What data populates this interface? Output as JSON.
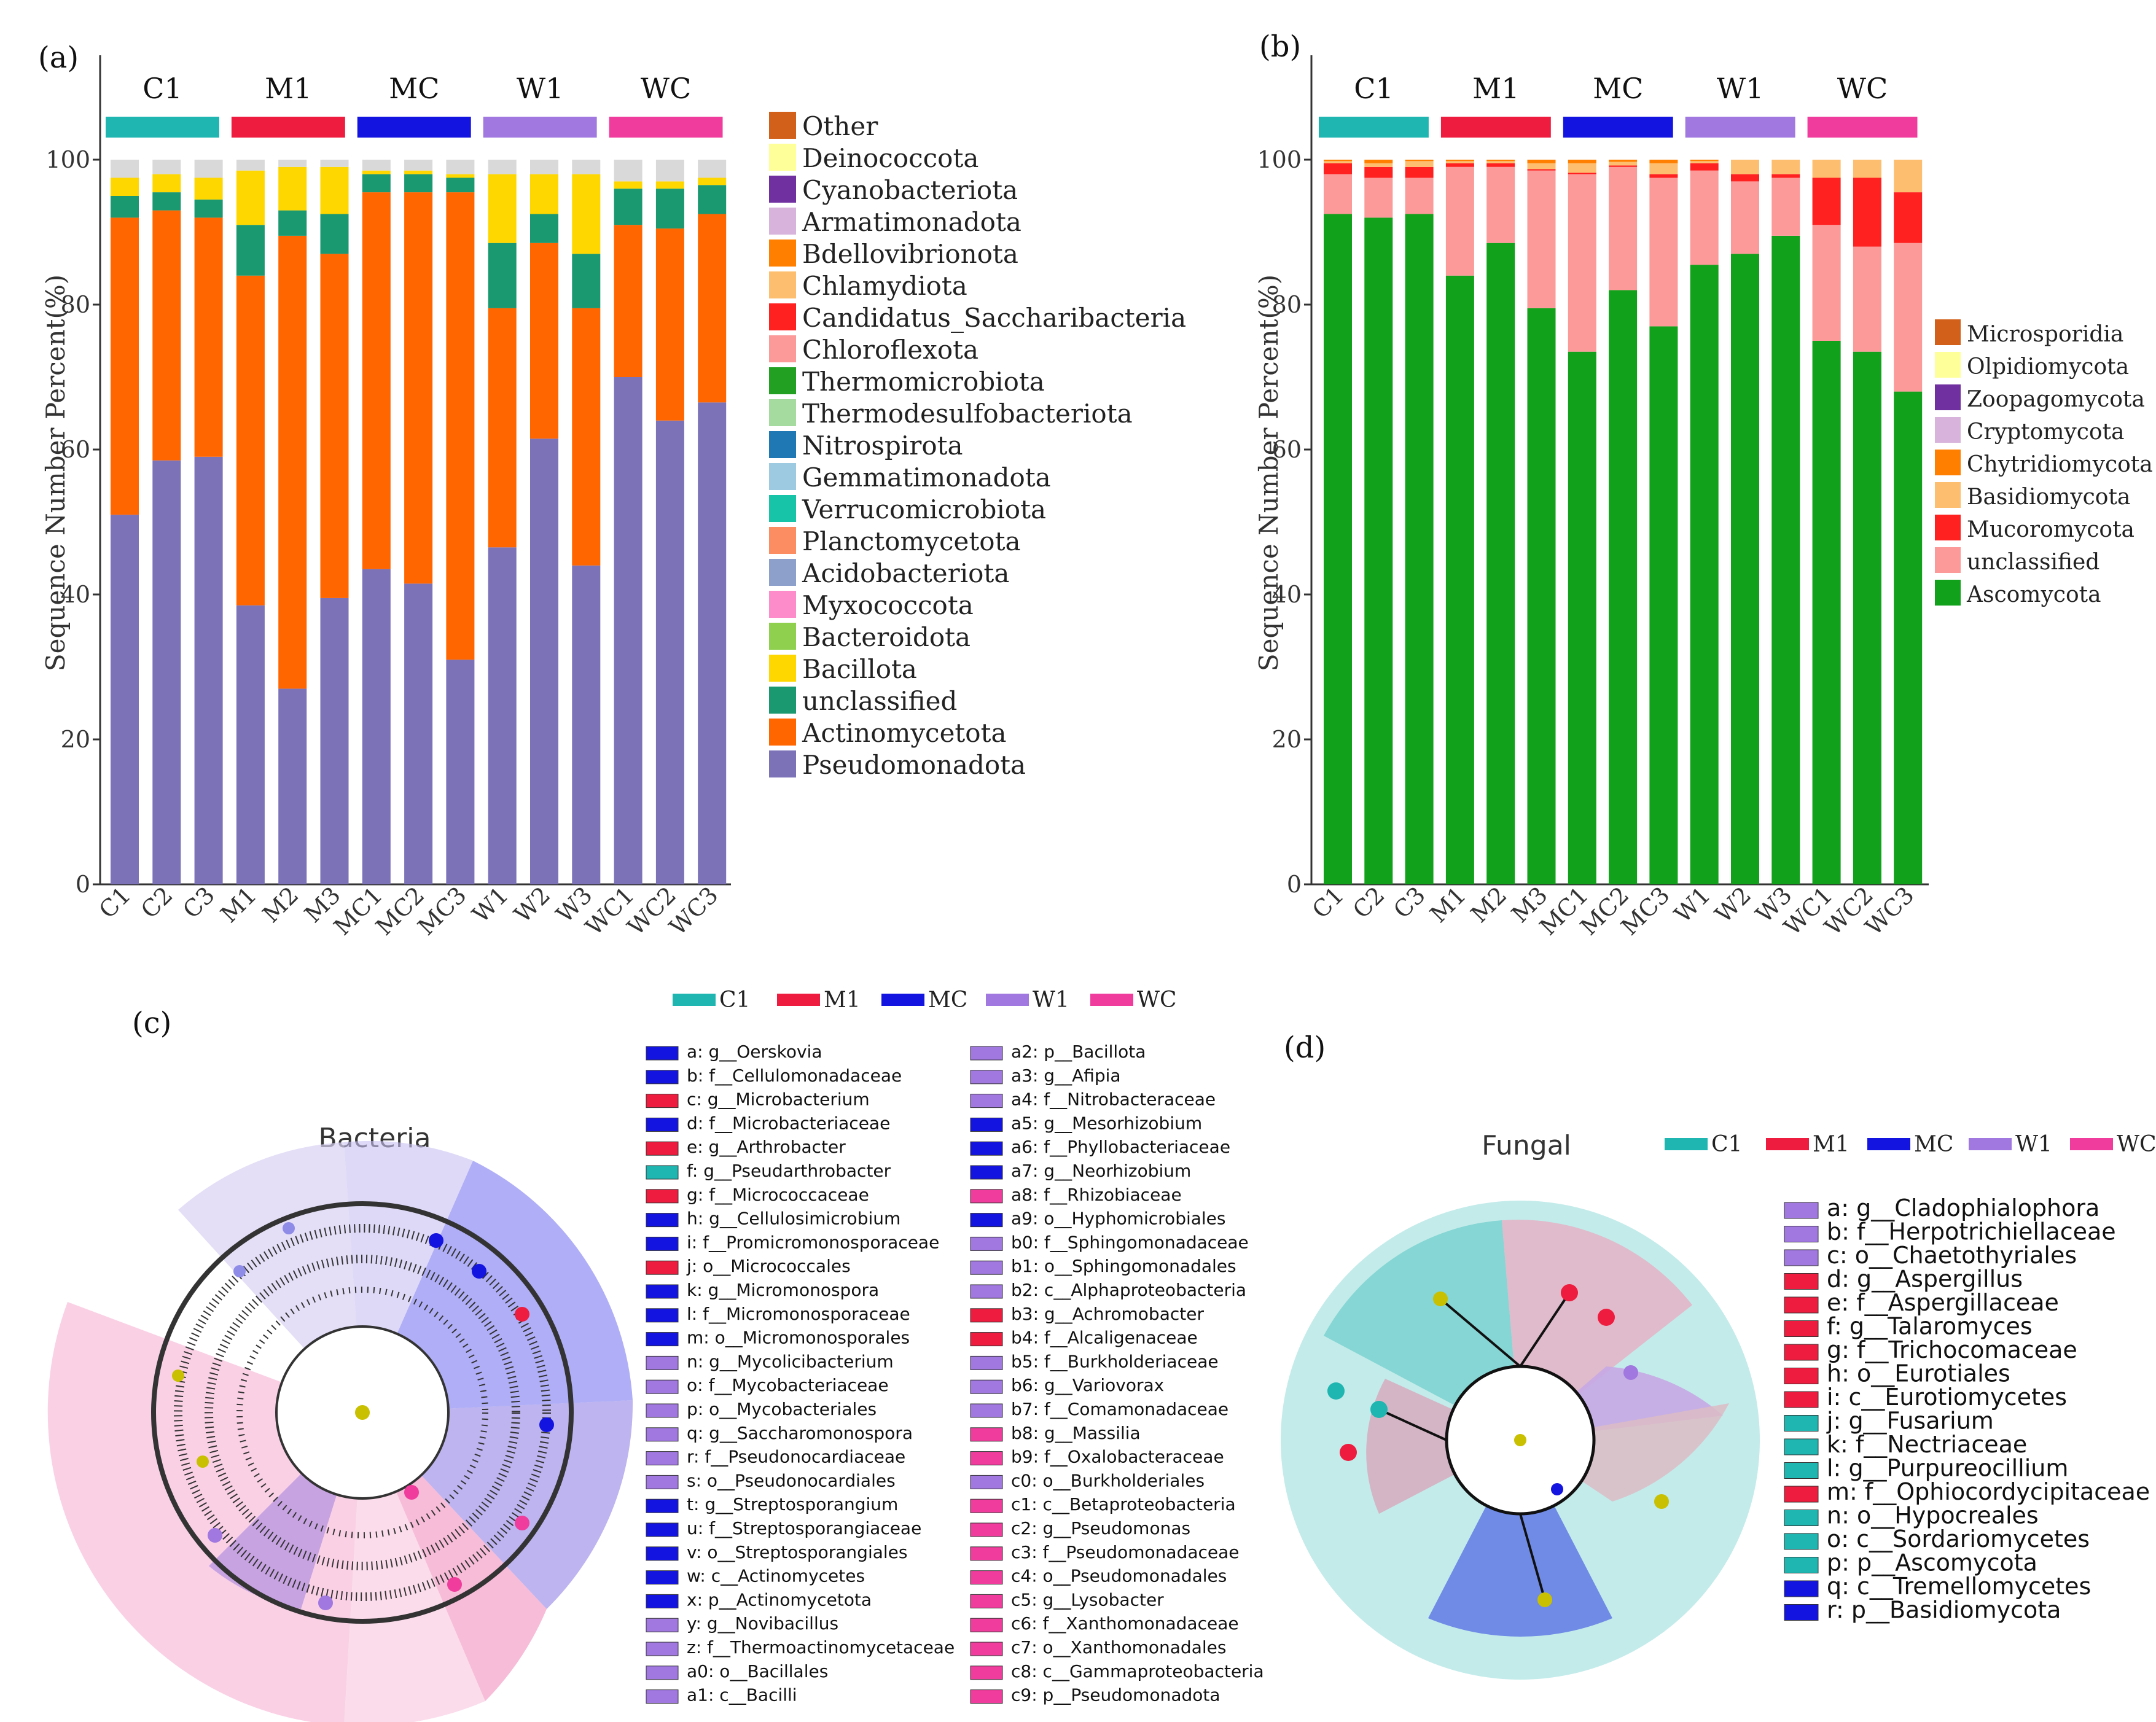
{
  "panels": {
    "a": "(a)",
    "b": "(b)",
    "c": "(c)",
    "d": "(d)"
  },
  "colors": {
    "C1": "#1fb5b0",
    "M1": "#ee1c3e",
    "MC": "#1414e0",
    "W1": "#a078e0",
    "WC": "#f03c9c"
  },
  "chart_data": [
    {
      "id": "a",
      "type": "bar",
      "stacked": true,
      "xlabel": "",
      "ylabel": "Sequence Number Percent(%)",
      "ylim": [
        0,
        100
      ],
      "yticks": [
        0,
        20,
        40,
        60,
        80,
        100
      ],
      "groups": [
        "C1",
        "M1",
        "MC",
        "W1",
        "WC"
      ],
      "categories": [
        "C1",
        "C2",
        "C3",
        "M1",
        "M2",
        "M3",
        "MC1",
        "MC2",
        "MC3",
        "W1",
        "W2",
        "W3",
        "WC1",
        "WC2",
        "WC3"
      ],
      "legend": [
        "Other",
        "Deinococcota",
        "Cyanobacteriota",
        "Armatimonadota",
        "Bdellovibrionota",
        "Chlamydiota",
        "Candidatus_Saccharibacteria",
        "Chloroflexota",
        "Thermomicrobiota",
        "Thermodesulfobacteriota",
        "Nitrospirota",
        "Gemmatimonadota",
        "Verrucomicrobiota",
        "Planctomycetota",
        "Acidobacteriota",
        "Myxococcota",
        "Bacteroidota",
        "Bacillota",
        "unclassified",
        "Actinomycetota",
        "Pseudomonadota"
      ],
      "legend_colors": [
        "#d2601a",
        "#ffff99",
        "#7030a0",
        "#d8b4dc",
        "#ff7f00",
        "#fdbf6f",
        "#ff2020",
        "#fb9a99",
        "#21a021",
        "#a6dba0",
        "#1f78b4",
        "#9ecae1",
        "#17c4a8",
        "#fc8d62",
        "#8da0cb",
        "#fc8dca",
        "#8fd14f",
        "#ffd700",
        "#1a9870",
        "#ff6600",
        "#7b72b8"
      ],
      "series": [
        {
          "name": "Pseudomonadota",
          "color": "#7b72b8",
          "values": [
            51,
            58.5,
            59,
            38.5,
            27,
            39.5,
            43.5,
            41.5,
            31,
            46.5,
            61.5,
            44,
            70,
            64,
            66.5
          ]
        },
        {
          "name": "Actinomycetota",
          "color": "#ff6600",
          "values": [
            41,
            34.5,
            33,
            45.5,
            62.5,
            47.5,
            52,
            54,
            64.5,
            33,
            27,
            35.5,
            21,
            26.5,
            26
          ]
        },
        {
          "name": "unclassified",
          "color": "#1a9870",
          "values": [
            3,
            2.5,
            2.5,
            7,
            3.5,
            5.5,
            2.5,
            2.5,
            2,
            9,
            4,
            7.5,
            5,
            5.5,
            4
          ]
        },
        {
          "name": "Bacillota",
          "color": "#ffd700",
          "values": [
            2.5,
            2.5,
            3,
            7.5,
            6,
            6.5,
            0.5,
            0.5,
            0.5,
            9.5,
            5.5,
            11,
            1,
            1,
            1
          ]
        },
        {
          "name": "Other",
          "color": "#d9d9d9",
          "values": [
            2.5,
            2,
            2.5,
            1.5,
            1,
            1,
            1.5,
            1.5,
            2,
            2,
            2,
            2,
            3,
            3,
            2.5
          ]
        }
      ]
    },
    {
      "id": "b",
      "type": "bar",
      "stacked": true,
      "xlabel": "",
      "ylabel": "Sequence Number Percent(%)",
      "ylim": [
        0,
        100
      ],
      "yticks": [
        0,
        20,
        40,
        60,
        80,
        100
      ],
      "groups": [
        "C1",
        "M1",
        "MC",
        "W1",
        "WC"
      ],
      "categories": [
        "C1",
        "C2",
        "C3",
        "M1",
        "M2",
        "M3",
        "MC1",
        "MC2",
        "MC3",
        "W1",
        "W2",
        "W3",
        "WC1",
        "WC2",
        "WC3"
      ],
      "legend": [
        "Microsporidia",
        "Olpidiomycota",
        "Zoopagomycota",
        "Cryptomycota",
        "Chytridiomycota",
        "Basidiomycota",
        "Mucoromycota",
        "unclassified",
        "Ascomycota"
      ],
      "legend_colors": [
        "#d2601a",
        "#ffff99",
        "#7030a0",
        "#d8b4dc",
        "#ff7f00",
        "#fdbf6f",
        "#ff2020",
        "#fb9a99",
        "#11a11a"
      ],
      "series": [
        {
          "name": "Ascomycota",
          "color": "#11a11a",
          "values": [
            92.5,
            92,
            92.5,
            84,
            88.5,
            79.5,
            73.5,
            82,
            77,
            85.5,
            87,
            89.5,
            75,
            73.5,
            68
          ]
        },
        {
          "name": "unclassified",
          "color": "#fb9a99",
          "values": [
            5.5,
            5.5,
            5,
            15,
            10.5,
            19,
            24.5,
            17,
            20.5,
            13,
            10,
            8,
            16,
            14.5,
            20.5
          ]
        },
        {
          "name": "Mucoromycota",
          "color": "#ff2020",
          "values": [
            1.5,
            1.5,
            1.5,
            0.5,
            0.5,
            0.2,
            0.2,
            0.2,
            0.5,
            1,
            1,
            0.5,
            6.5,
            9.5,
            7
          ]
        },
        {
          "name": "Basidiomycota",
          "color": "#fdbf6f",
          "values": [
            0.3,
            0.5,
            0.8,
            0.3,
            0.3,
            0.8,
            1.3,
            0.5,
            1.5,
            0.3,
            2,
            2,
            2.5,
            2.5,
            4.5
          ]
        },
        {
          "name": "Chytridiomycota",
          "color": "#ff7f00",
          "values": [
            0.2,
            0.5,
            0.2,
            0.2,
            0.2,
            0.5,
            0.5,
            0.3,
            0.5,
            0.2,
            0,
            0,
            0,
            0,
            0
          ]
        }
      ]
    }
  ],
  "panel_c": {
    "group_legend": [
      "C1",
      "M1",
      "MC",
      "W1",
      "WC"
    ],
    "title": "Bacteria",
    "col1": [
      {
        "label": "a: g__Oerskovia",
        "g": "MC"
      },
      {
        "label": "b: f__Cellulomonadaceae",
        "g": "MC"
      },
      {
        "label": "c: g__Microbacterium",
        "g": "M1"
      },
      {
        "label": "d: f__Microbacteriaceae",
        "g": "MC"
      },
      {
        "label": "e: g__Arthrobacter",
        "g": "M1"
      },
      {
        "label": "f: g__Pseudarthrobacter",
        "g": "C1"
      },
      {
        "label": "g: f__Micrococcaceae",
        "g": "M1"
      },
      {
        "label": "h: g__Cellulosimicrobium",
        "g": "MC"
      },
      {
        "label": "i: f__Promicromonosporaceae",
        "g": "MC"
      },
      {
        "label": "j: o__Micrococcales",
        "g": "M1"
      },
      {
        "label": "k: g__Micromonospora",
        "g": "MC"
      },
      {
        "label": "l: f__Micromonosporaceae",
        "g": "MC"
      },
      {
        "label": "m: o__Micromonosporales",
        "g": "MC"
      },
      {
        "label": "n: g__Mycolicibacterium",
        "g": "W1"
      },
      {
        "label": "o: f__Mycobacteriaceae",
        "g": "W1"
      },
      {
        "label": "p: o__Mycobacteriales",
        "g": "W1"
      },
      {
        "label": "q: g__Saccharomonospora",
        "g": "W1"
      },
      {
        "label": "r: f__Pseudonocardiaceae",
        "g": "W1"
      },
      {
        "label": "s: o__Pseudonocardiales",
        "g": "W1"
      },
      {
        "label": "t: g__Streptosporangium",
        "g": "MC"
      },
      {
        "label": "u: f__Streptosporangiaceae",
        "g": "MC"
      },
      {
        "label": "v: o__Streptosporangiales",
        "g": "MC"
      },
      {
        "label": "w: c__Actinomycetes",
        "g": "MC"
      },
      {
        "label": "x: p__Actinomycetota",
        "g": "MC"
      },
      {
        "label": "y: g__Novibacillus",
        "g": "W1"
      },
      {
        "label": "z: f__Thermoactinomycetaceae",
        "g": "W1"
      },
      {
        "label": "a0: o__Bacillales",
        "g": "W1"
      },
      {
        "label": "a1: c__Bacilli",
        "g": "W1"
      }
    ],
    "col2": [
      {
        "label": "a2: p__Bacillota",
        "g": "W1"
      },
      {
        "label": "a3: g__Afipia",
        "g": "W1"
      },
      {
        "label": "a4: f__Nitrobacteraceae",
        "g": "W1"
      },
      {
        "label": "a5: g__Mesorhizobium",
        "g": "MC"
      },
      {
        "label": "a6: f__Phyllobacteriaceae",
        "g": "MC"
      },
      {
        "label": "a7: g__Neorhizobium",
        "g": "MC"
      },
      {
        "label": "a8: f__Rhizobiaceae",
        "g": "WC"
      },
      {
        "label": "a9: o__Hyphomicrobiales",
        "g": "MC"
      },
      {
        "label": "b0: f__Sphingomonadaceae",
        "g": "W1"
      },
      {
        "label": "b1: o__Sphingomonadales",
        "g": "W1"
      },
      {
        "label": "b2: c__Alphaproteobacteria",
        "g": "W1"
      },
      {
        "label": "b3: g__Achromobacter",
        "g": "M1"
      },
      {
        "label": "b4: f__Alcaligenaceae",
        "g": "M1"
      },
      {
        "label": "b5: f__Burkholderiaceae",
        "g": "W1"
      },
      {
        "label": "b6: g__Variovorax",
        "g": "W1"
      },
      {
        "label": "b7: f__Comamonadaceae",
        "g": "W1"
      },
      {
        "label": "b8: g__Massilia",
        "g": "WC"
      },
      {
        "label": "b9: f__Oxalobacteraceae",
        "g": "WC"
      },
      {
        "label": "c0: o__Burkholderiales",
        "g": "W1"
      },
      {
        "label": "c1: c__Betaproteobacteria",
        "g": "WC"
      },
      {
        "label": "c2: g__Pseudomonas",
        "g": "WC"
      },
      {
        "label": "c3: f__Pseudomonadaceae",
        "g": "WC"
      },
      {
        "label": "c4: o__Pseudomonadales",
        "g": "WC"
      },
      {
        "label": "c5: g__Lysobacter",
        "g": "WC"
      },
      {
        "label": "c6: f__Xanthomonadaceae",
        "g": "WC"
      },
      {
        "label": "c7: o__Xanthomonadales",
        "g": "WC"
      },
      {
        "label": "c8: c__Gammaproteobacteria",
        "g": "WC"
      },
      {
        "label": "c9: p__Pseudomonadota",
        "g": "WC"
      }
    ]
  },
  "panel_d": {
    "group_legend": [
      "C1",
      "M1",
      "MC",
      "W1",
      "WC"
    ],
    "title": "Fungal",
    "items": [
      {
        "label": "a: g__Cladophialophora",
        "g": "W1"
      },
      {
        "label": "b: f__Herpotrichiellaceae",
        "g": "W1"
      },
      {
        "label": "c: o__Chaetothyriales",
        "g": "W1"
      },
      {
        "label": "d: g__Aspergillus",
        "g": "M1"
      },
      {
        "label": "e: f__Aspergillaceae",
        "g": "M1"
      },
      {
        "label": "f: g__Talaromyces",
        "g": "M1"
      },
      {
        "label": "g: f__Trichocomaceae",
        "g": "M1"
      },
      {
        "label": "h: o__Eurotiales",
        "g": "M1"
      },
      {
        "label": "i: c__Eurotiomycetes",
        "g": "M1"
      },
      {
        "label": "j: g__Fusarium",
        "g": "C1"
      },
      {
        "label": "k: f__Nectriaceae",
        "g": "C1"
      },
      {
        "label": "l: g__Purpureocillium",
        "g": "C1"
      },
      {
        "label": "m: f__Ophiocordycipitaceae",
        "g": "M1"
      },
      {
        "label": "n: o__Hypocreales",
        "g": "C1"
      },
      {
        "label": "o: c__Sordariomycetes",
        "g": "C1"
      },
      {
        "label": "p: p__Ascomycota",
        "g": "C1"
      },
      {
        "label": "q: c__Tremellomycetes",
        "g": "MC"
      },
      {
        "label": "r: p__Basidiomycota",
        "g": "MC"
      }
    ]
  }
}
